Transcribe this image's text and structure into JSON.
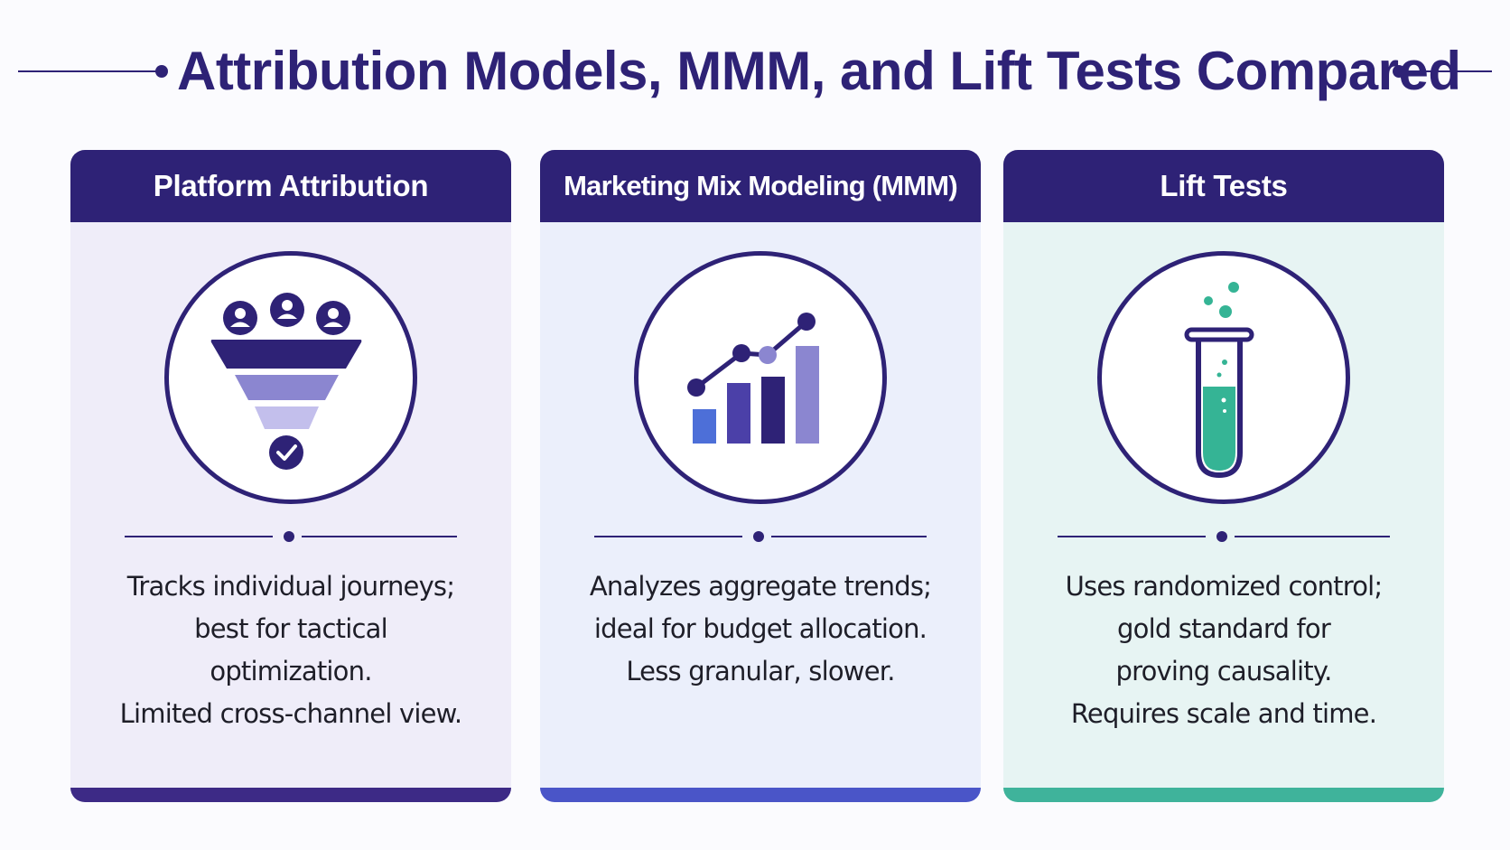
{
  "title": "Attribution Models, MMM, and Lift Tests Compared",
  "cards": [
    {
      "heading": "Platform Attribution",
      "icon": "funnel-icon",
      "lines": [
        "Tracks individual journeys;",
        "best for tactical",
        "optimization.",
        "Limited cross-channel view."
      ],
      "accent": "#3d2a86"
    },
    {
      "heading": "Marketing Mix Modeling (MMM)",
      "icon": "bar-chart-icon",
      "lines": [
        "Analyzes aggregate trends;",
        "ideal for budget allocation.",
        "Less granular, slower."
      ],
      "accent": "#4a55c8"
    },
    {
      "heading": "Lift Tests",
      "icon": "test-tube-icon",
      "lines": [
        "Uses randomized control;",
        "gold standard for",
        "proving causality.",
        "Requires scale and time."
      ],
      "accent": "#3fb39b"
    }
  ],
  "colors": {
    "primary": "#2e2276",
    "purple_mid": "#8b86d0",
    "purple_light": "#c3bfec",
    "blue": "#4d6fd8",
    "teal": "#35b495"
  }
}
